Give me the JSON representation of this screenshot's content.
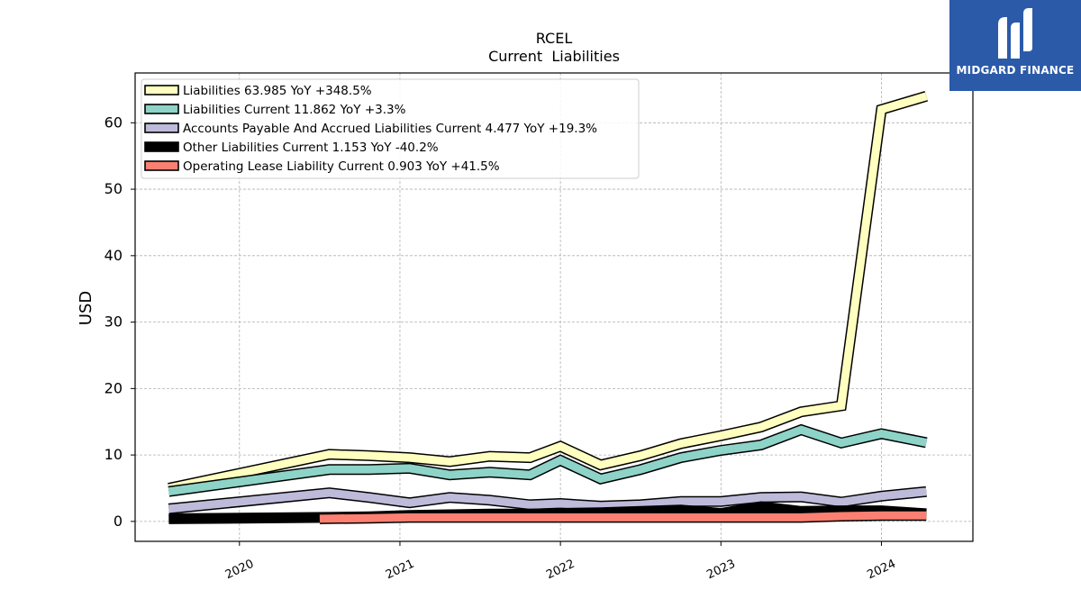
{
  "branding": {
    "name": "MIDGARD FINANCE",
    "logo_icon": "midgard-logo-icon",
    "bg_color": "#2b5aa8"
  },
  "chart_data": {
    "type": "area",
    "title": "RCEL",
    "subtitle": "Current  Liabilities",
    "ylabel": "USD",
    "xlabel": "",
    "ylim": [
      -3,
      67.5
    ],
    "xlim": [
      2019.35,
      2024.57
    ],
    "yticks": [
      0,
      10,
      20,
      30,
      40,
      50,
      60
    ],
    "xticks": [
      {
        "label": "2020",
        "value": 2020.0
      },
      {
        "label": "2021",
        "value": 2021.0
      },
      {
        "label": "2022",
        "value": 2022.0
      },
      {
        "label": "2023",
        "value": 2023.0
      },
      {
        "label": "2024",
        "value": 2024.0
      }
    ],
    "grid": true,
    "legend_position": "top-left",
    "series": [
      {
        "name": "Liabilities",
        "legend_label": "Liabilities  63.985 YoY +348.5%",
        "color": "#ffffbf",
        "x": [
          2019.56,
          2020.56,
          2020.81,
          2021.06,
          2021.31,
          2021.56,
          2021.81,
          2022.0,
          2022.25,
          2022.5,
          2022.75,
          2023.0,
          2023.25,
          2023.5,
          2023.75,
          2024.0,
          2024.28
        ],
        "values": [
          5.0,
          10.1,
          9.9,
          9.6,
          9.0,
          9.8,
          9.6,
          11.3,
          8.5,
          9.9,
          11.7,
          12.9,
          14.2,
          16.5,
          17.4,
          62.0,
          64.0
        ]
      },
      {
        "name": "Liabilities Current",
        "legend_label": "Liabilities Current  11.862 YoY +3.3%",
        "color": "#8dd3c7",
        "x": [
          2019.56,
          2020.56,
          2020.81,
          2021.06,
          2021.31,
          2021.56,
          2021.81,
          2022.0,
          2022.25,
          2022.5,
          2022.75,
          2023.0,
          2023.25,
          2023.5,
          2023.75,
          2024.0,
          2024.28
        ],
        "values": [
          4.5,
          7.8,
          7.8,
          8.0,
          7.0,
          7.4,
          7.0,
          9.2,
          6.4,
          7.8,
          9.6,
          10.7,
          11.5,
          13.8,
          11.8,
          13.2,
          11.86
        ]
      },
      {
        "name": "Accounts Payable And Accrued Liabilities Current",
        "legend_label": "Accounts Payable And Accrued Liabilities Current  4.477 YoY +19.3%",
        "color": "#bebada",
        "x": [
          2019.56,
          2020.56,
          2020.81,
          2021.06,
          2021.31,
          2021.56,
          2021.81,
          2022.0,
          2022.25,
          2022.5,
          2022.75,
          2023.0,
          2023.25,
          2023.5,
          2023.75,
          2024.0,
          2024.28
        ],
        "values": [
          1.9,
          4.3,
          3.6,
          2.8,
          3.6,
          3.2,
          2.5,
          2.7,
          2.3,
          2.5,
          3.0,
          3.0,
          3.6,
          3.7,
          2.9,
          3.8,
          4.48
        ]
      },
      {
        "name": "Other Liabilities Current",
        "legend_label": "Other Liabilities Current  1.153 YoY -40.2%",
        "color": "#000000",
        "x": [
          2019.56,
          2020.56,
          2020.81,
          2021.06,
          2021.31,
          2021.56,
          2021.81,
          2022.0,
          2022.25,
          2022.5,
          2022.75,
          2023.0,
          2023.25,
          2023.5,
          2023.75,
          2024.0,
          2024.28
        ],
        "values": [
          0.4,
          0.6,
          0.7,
          0.9,
          1.0,
          1.1,
          1.1,
          1.2,
          1.3,
          1.5,
          1.7,
          1.2,
          2.2,
          1.5,
          1.6,
          1.6,
          1.15
        ]
      },
      {
        "name": "Operating Lease Liability Current",
        "legend_label": "Operating Lease Liability Current  0.903 YoY +41.5%",
        "color": "#fb8072",
        "x": [
          2020.5,
          2020.81,
          2021.06,
          2021.31,
          2021.56,
          2021.81,
          2022.0,
          2022.25,
          2022.5,
          2022.75,
          2023.0,
          2023.25,
          2023.5,
          2023.75,
          2024.0,
          2024.28
        ],
        "values": [
          0.4,
          0.5,
          0.6,
          0.6,
          0.6,
          0.6,
          0.6,
          0.6,
          0.6,
          0.6,
          0.6,
          0.6,
          0.6,
          0.8,
          0.9,
          0.9
        ]
      }
    ]
  }
}
